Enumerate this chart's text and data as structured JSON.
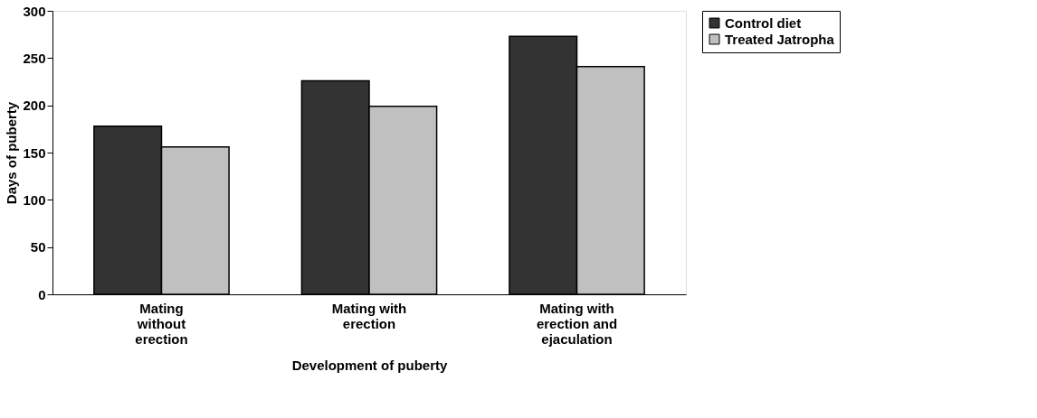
{
  "chart_data": {
    "type": "bar",
    "xlabel": "Development of puberty",
    "ylabel": "Days of puberty",
    "categories": [
      "Mating without erection",
      "Mating with erection",
      "Mating with erection and ejaculation"
    ],
    "series": [
      {
        "name": "Control diet",
        "color": "#333333",
        "values": [
          178,
          226,
          273
        ]
      },
      {
        "name": "Treated Jatropha",
        "color": "#c0c0c0",
        "values": [
          156,
          199,
          241
        ]
      }
    ],
    "ylim": [
      0,
      300
    ],
    "yticks": [
      0,
      50,
      100,
      150,
      200,
      250,
      300
    ],
    "grid": false,
    "legend": "right"
  }
}
